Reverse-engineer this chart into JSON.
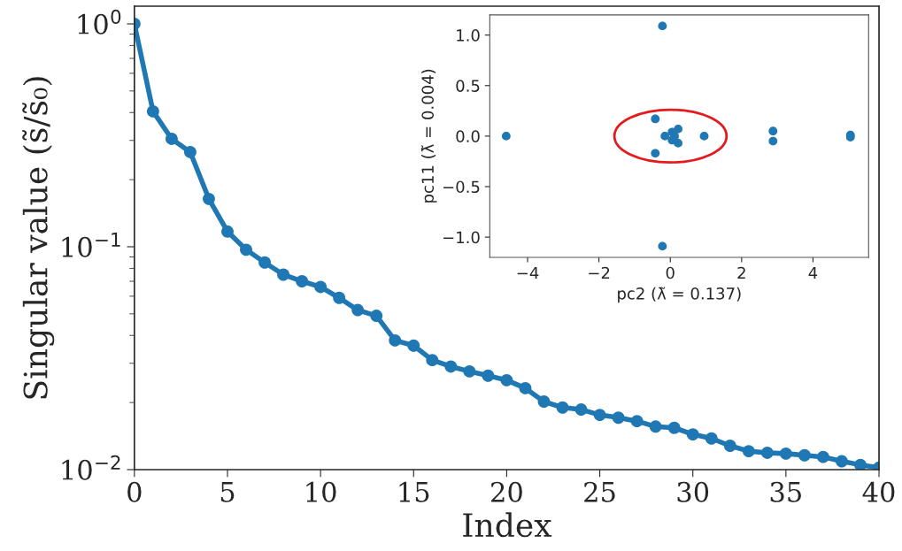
{
  "chart_data": [
    {
      "type": "line",
      "xlabel": "Index",
      "ylabel": "Singular value (s̃/s̃₀)",
      "log": "y",
      "marker": "circle",
      "line_style": "solid",
      "x": [
        0,
        1,
        2,
        3,
        4,
        5,
        6,
        7,
        8,
        9,
        10,
        11,
        12,
        13,
        14,
        15,
        16,
        17,
        18,
        19,
        20,
        21,
        22,
        23,
        24,
        25,
        26,
        27,
        28,
        29,
        30,
        31,
        32,
        33,
        34,
        35,
        36,
        37,
        38,
        39,
        40
      ],
      "series": [
        {
          "color": "#1f77b4",
          "values": [
            1.0,
            0.405,
            0.305,
            0.266,
            0.164,
            0.117,
            0.097,
            0.085,
            0.075,
            0.07,
            0.066,
            0.059,
            0.052,
            0.049,
            0.038,
            0.036,
            0.031,
            0.029,
            0.0276,
            0.0264,
            0.0252,
            0.0232,
            0.0202,
            0.019,
            0.0186,
            0.0176,
            0.0171,
            0.0165,
            0.0156,
            0.0154,
            0.0144,
            0.0138,
            0.0128,
            0.0121,
            0.0119,
            0.0118,
            0.0116,
            0.0114,
            0.0109,
            0.0105,
            0.0102
          ]
        }
      ],
      "xlim": [
        0,
        40
      ],
      "xticks": [
        0,
        5,
        10,
        15,
        20,
        25,
        30,
        35,
        40
      ],
      "ylim": [
        0.01,
        1.2
      ],
      "yticks": [
        {
          "value": 1,
          "label": "10$^{0}$"
        },
        {
          "value": 0.1,
          "label": "10$^{−1}$"
        },
        {
          "value": 0.01,
          "label": "10$^{−2}$"
        }
      ]
    },
    {
      "type": "scatter",
      "xlabel": "pc2 (λ̃ = 0.137)",
      "ylabel": "pc11 (λ̃ = 0.004)",
      "marker": "circle",
      "x": [
        -4.6,
        -0.22,
        -0.22,
        -0.42,
        -0.42,
        -0.15,
        0.95,
        2.88,
        2.88,
        5.05,
        5.05,
        0.05,
        0.05,
        0.22,
        0.22,
        0.12
      ],
      "series": [
        {
          "color": "#1f77b4",
          "values": [
            0.0,
            1.09,
            -1.09,
            0.17,
            -0.17,
            0.0,
            0.0,
            0.05,
            -0.05,
            0.01,
            -0.01,
            0.04,
            -0.04,
            0.07,
            -0.07,
            0.0
          ]
        }
      ],
      "xlim": [
        -5.06,
        5.56
      ],
      "xticks": [
        {
          "value": -4,
          "label": "−4"
        },
        {
          "value": -2,
          "label": "−2"
        },
        0,
        2,
        4
      ],
      "ylim": [
        -1.2,
        1.2
      ],
      "yticks": [
        {
          "value": -1.0,
          "label": "−1.0"
        },
        {
          "value": -0.5,
          "label": "−0.5"
        },
        {
          "value": 0,
          "label": "0.0"
        },
        0.5,
        {
          "value": 1,
          "label": "1.0"
        }
      ]
    }
  ]
}
